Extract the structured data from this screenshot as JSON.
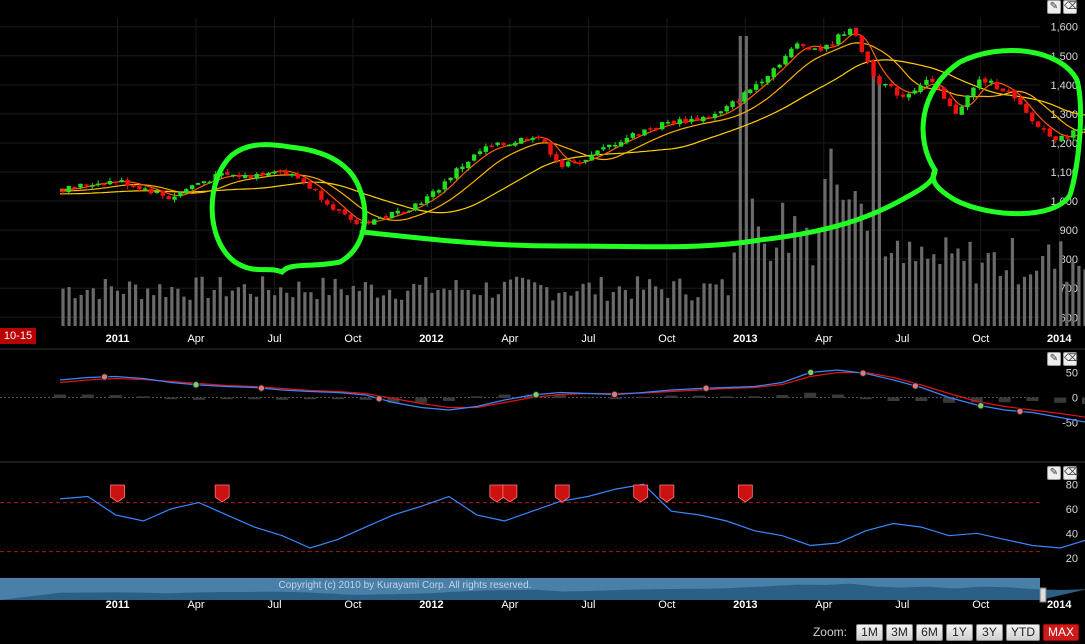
{
  "chart_data": [
    {
      "type": "candlestick",
      "title": "",
      "y_ticks": [
        "1,600",
        "1,500",
        "1,400",
        "1,300",
        "1,200",
        "1,100",
        "1,000",
        "900",
        "800",
        "700",
        "600"
      ],
      "y_tick_values": [
        1600,
        1500,
        1400,
        1300,
        1200,
        1100,
        1000,
        900,
        800,
        700,
        600
      ],
      "ylim": [
        570,
        1630
      ],
      "x_ticks": [
        "2011",
        "Apr",
        "Jul",
        "Oct",
        "2012",
        "Apr",
        "Jul",
        "Oct",
        "2013",
        "Apr",
        "Jul",
        "Oct",
        "2014"
      ],
      "x_tick_months": [
        0,
        3,
        6,
        9,
        12,
        15,
        18,
        21,
        24,
        27,
        30,
        33,
        36
      ],
      "xlim_months": [
        -2.2,
        37.1
      ],
      "date_badge": "10-15",
      "close_series_monthly": [
        {
          "m": -2,
          "v": 1040
        },
        {
          "m": -1,
          "v": 1060
        },
        {
          "m": 0,
          "v": 1070
        },
        {
          "m": 1,
          "v": 1045
        },
        {
          "m": 2,
          "v": 1010
        },
        {
          "m": 3,
          "v": 1060
        },
        {
          "m": 4,
          "v": 1090
        },
        {
          "m": 5,
          "v": 1085
        },
        {
          "m": 6,
          "v": 1110
        },
        {
          "m": 7,
          "v": 1075
        },
        {
          "m": 8,
          "v": 1000
        },
        {
          "m": 9,
          "v": 920
        },
        {
          "m": 10,
          "v": 940
        },
        {
          "m": 11,
          "v": 970
        },
        {
          "m": 12,
          "v": 1020
        },
        {
          "m": 13,
          "v": 1110
        },
        {
          "m": 14,
          "v": 1180
        },
        {
          "m": 15,
          "v": 1200
        },
        {
          "m": 16,
          "v": 1230
        },
        {
          "m": 17,
          "v": 1120
        },
        {
          "m": 18,
          "v": 1150
        },
        {
          "m": 19,
          "v": 1200
        },
        {
          "m": 20,
          "v": 1240
        },
        {
          "m": 21,
          "v": 1270
        },
        {
          "m": 22,
          "v": 1280
        },
        {
          "m": 23,
          "v": 1300
        },
        {
          "m": 24,
          "v": 1370
        },
        {
          "m": 25,
          "v": 1450
        },
        {
          "m": 26,
          "v": 1540
        },
        {
          "m": 27,
          "v": 1520
        },
        {
          "m": 28,
          "v": 1600
        },
        {
          "m": 29,
          "v": 1420
        },
        {
          "m": 30,
          "v": 1360
        },
        {
          "m": 31,
          "v": 1420
        },
        {
          "m": 32,
          "v": 1300
        },
        {
          "m": 33,
          "v": 1420
        },
        {
          "m": 34,
          "v": 1380
        },
        {
          "m": 35,
          "v": 1270
        },
        {
          "m": 36,
          "v": 1210
        },
        {
          "m": 37,
          "v": 1260
        }
      ],
      "moving_average_colors": [
        "#ff5a00",
        "#ffb000",
        "#ffd000"
      ],
      "volume_color": "#6a6a6a",
      "up_color": "#22dd22",
      "down_color": "#ee1111"
    },
    {
      "type": "line",
      "panel": "oscillator",
      "y_ticks": [
        "50",
        "0",
        "-50"
      ],
      "y_tick_values": [
        50,
        0,
        -50
      ],
      "ylim": [
        -75,
        75
      ],
      "series": [
        {
          "values_monthly": [
            35,
            40,
            42,
            38,
            30,
            25,
            22,
            20,
            15,
            12,
            10,
            5,
            -10,
            -20,
            -25,
            -18,
            -5,
            5,
            10,
            8,
            6,
            10,
            15,
            18,
            20,
            22,
            30,
            50,
            55,
            48,
            35,
            20,
            0,
            -15,
            -25,
            -30,
            -40,
            -50
          ],
          "color": "#3b86ff"
        },
        {
          "values_monthly": [
            30,
            35,
            38,
            36,
            32,
            28,
            24,
            22,
            18,
            14,
            12,
            8,
            -2,
            -12,
            -20,
            -20,
            -10,
            0,
            6,
            8,
            8,
            9,
            12,
            15,
            18,
            20,
            26,
            42,
            50,
            50,
            40,
            25,
            8,
            -8,
            -18,
            -25,
            -32,
            -40
          ],
          "color": "#e01414"
        }
      ],
      "markers_months": [
        -0.5,
        3,
        5.5,
        10,
        16,
        19,
        22.5,
        26.5,
        28.5,
        30.5,
        33,
        34.5
      ]
    },
    {
      "type": "line",
      "panel": "rsi",
      "y_ticks": [
        "80",
        "60",
        "40",
        "20"
      ],
      "y_tick_values": [
        80,
        60,
        40,
        20
      ],
      "ylim": [
        10,
        90
      ],
      "dashed_levels": [
        65,
        25
      ],
      "series": [
        {
          "values_monthly": [
            68,
            70,
            55,
            50,
            60,
            65,
            55,
            45,
            38,
            28,
            35,
            45,
            55,
            62,
            70,
            55,
            50,
            58,
            66,
            70,
            76,
            80,
            58,
            55,
            50,
            42,
            38,
            30,
            32,
            42,
            48,
            45,
            38,
            40,
            35,
            30,
            28,
            35
          ],
          "color": "#3b86ff"
        }
      ],
      "flag_months": [
        0,
        4,
        14.5,
        15,
        17,
        20,
        21,
        24
      ]
    }
  ],
  "navigator": {
    "labels": [
      "2011",
      "Apr",
      "Jul",
      "Oct",
      "2012",
      "Apr",
      "Jul",
      "Oct",
      "2013",
      "Apr",
      "Jul",
      "Oct",
      "2014"
    ],
    "copyright": "Copyright (c) 2010 by Kurayami Corp. All rights reserved."
  },
  "toolbar": {
    "zoom_label": "Zoom:",
    "buttons": [
      "1M",
      "3M",
      "6M",
      "1Y",
      "3Y",
      "YTD",
      "MAX"
    ],
    "active": "MAX"
  },
  "annotations": {
    "color": "#22ff22"
  }
}
